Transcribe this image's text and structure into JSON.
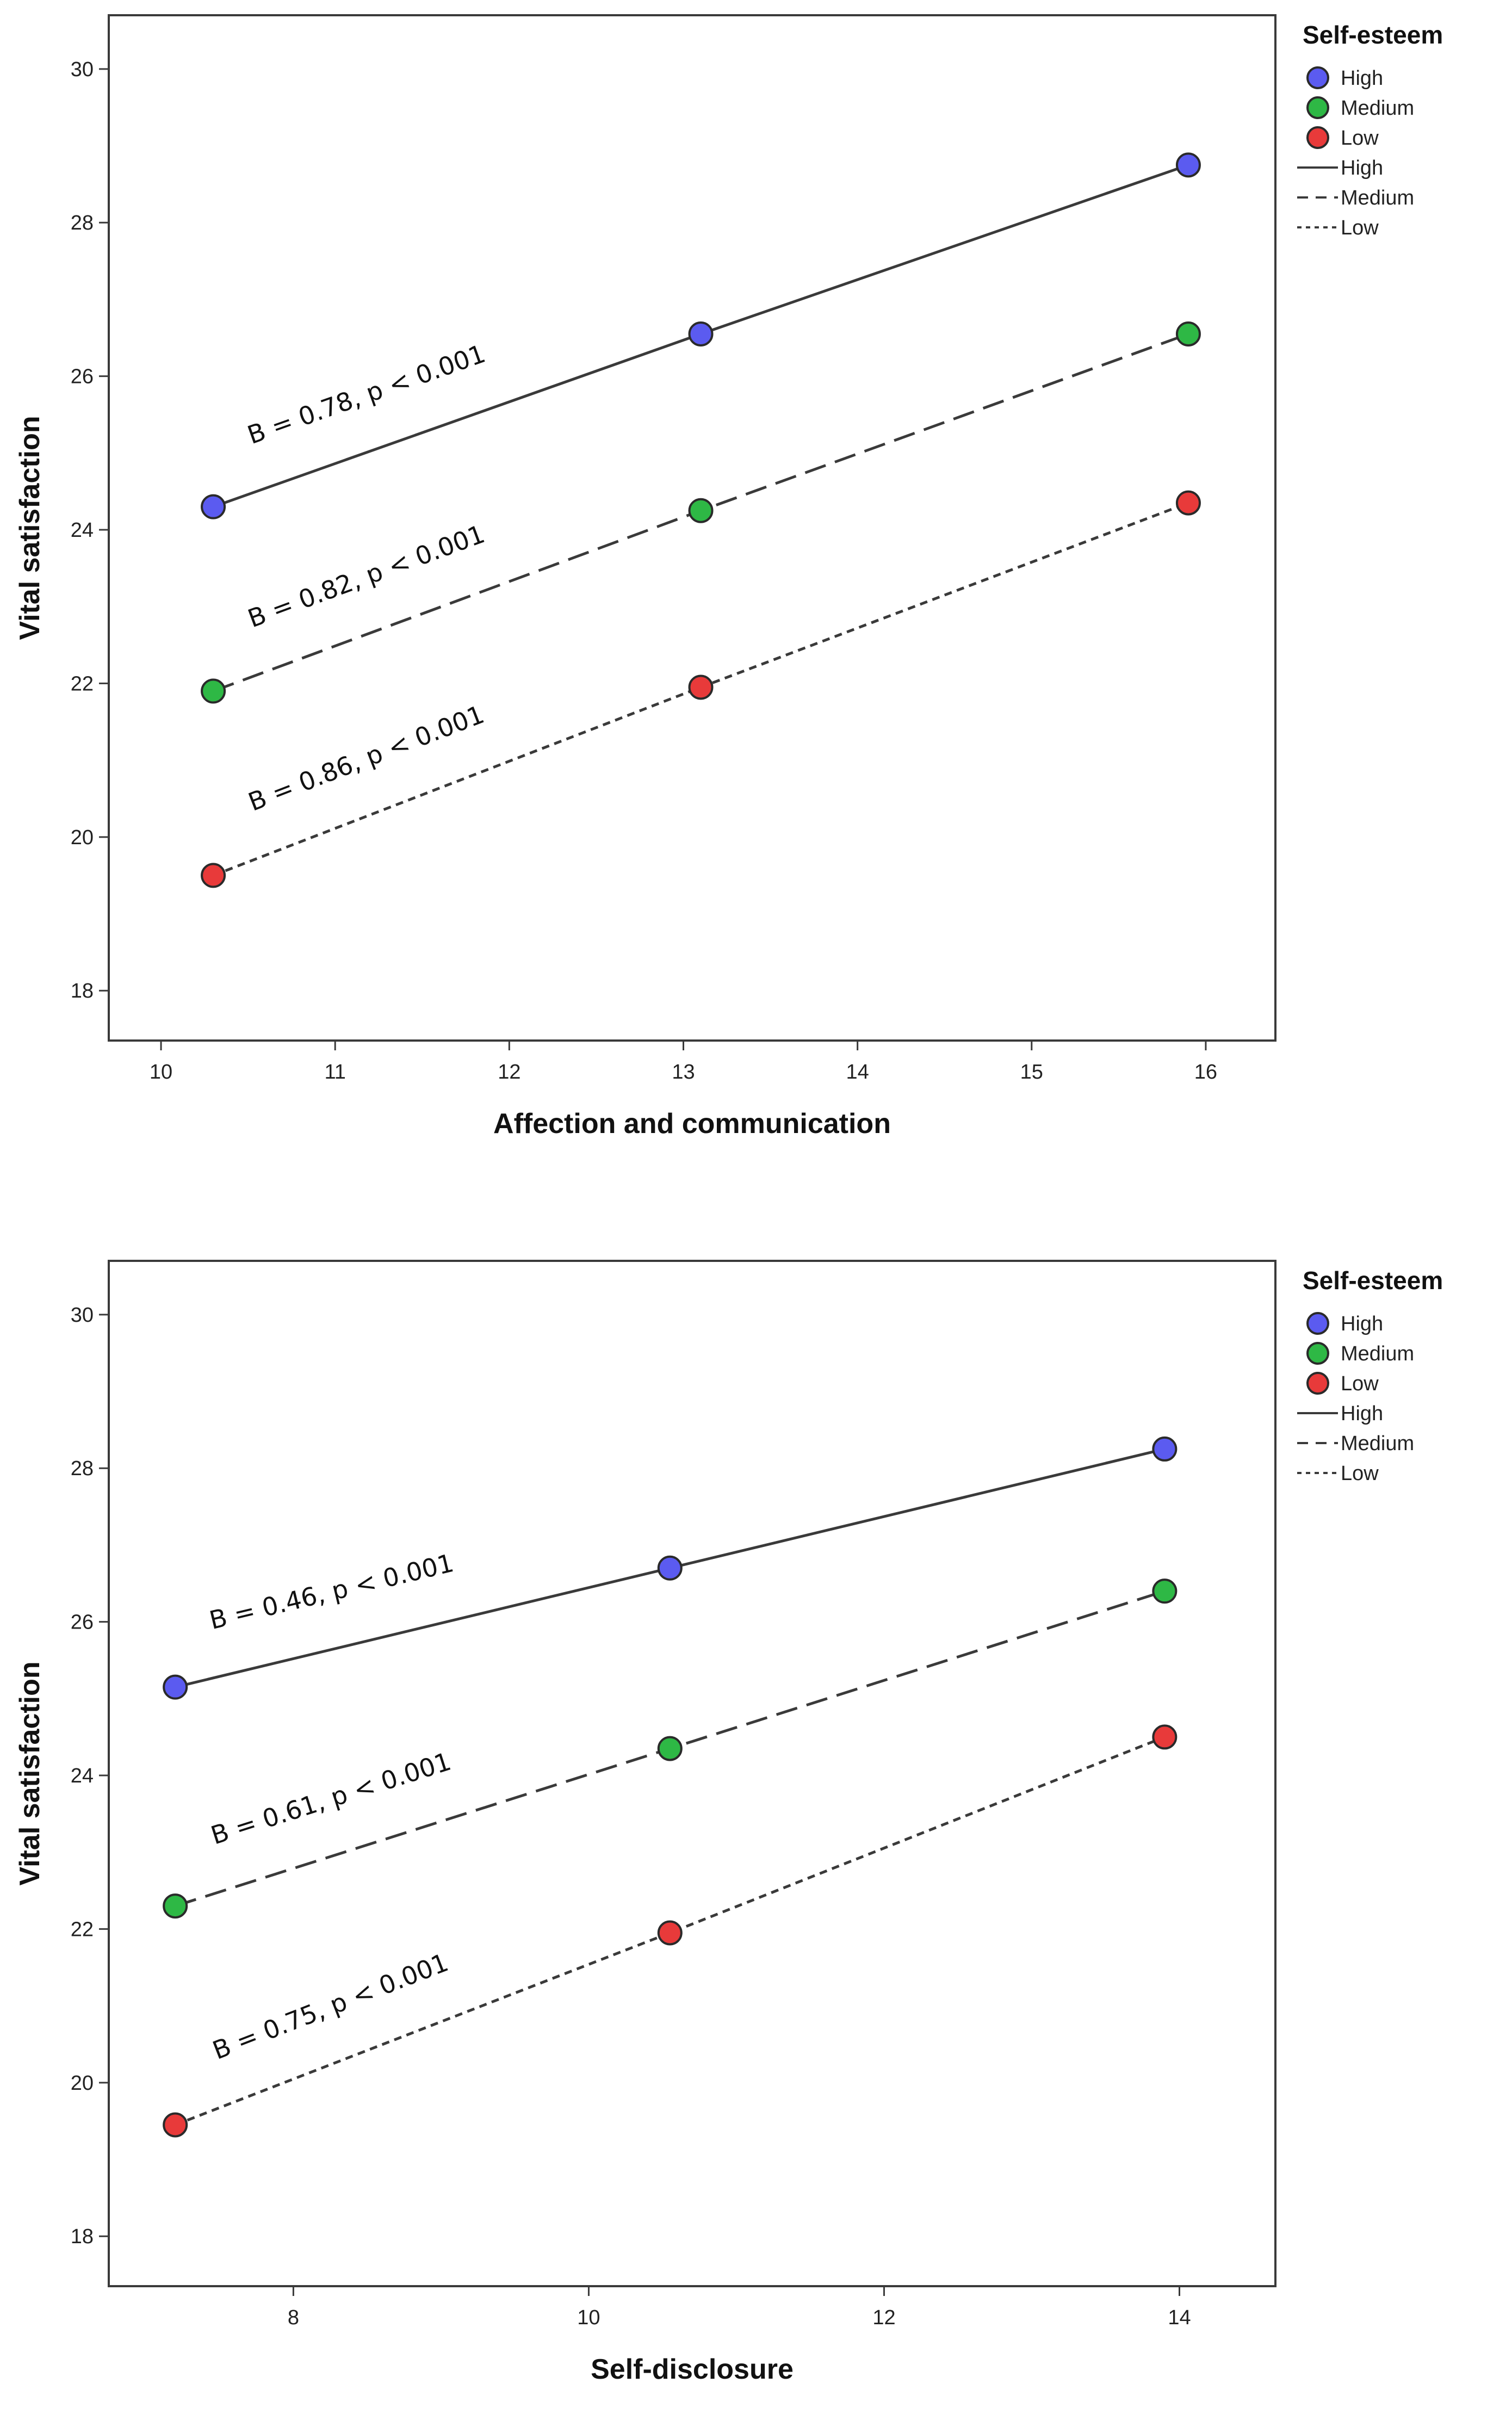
{
  "chart_data": [
    {
      "type": "line",
      "xlabel": "Affection and communication",
      "ylabel": "Vital satisfaction",
      "xlim": [
        9.7,
        16.4
      ],
      "ylim": [
        17.35,
        30.7
      ],
      "xticks": [
        10,
        11,
        12,
        13,
        14,
        15,
        16
      ],
      "yticks": [
        18,
        20,
        22,
        24,
        26,
        28,
        30
      ],
      "legend": {
        "title": "Self-esteem",
        "markers": [
          "High",
          "Medium",
          "Low"
        ],
        "lines": [
          "High",
          "Medium",
          "Low"
        ],
        "placement": "outside-right"
      },
      "x": [
        10.3,
        13.1,
        15.9
      ],
      "series": [
        {
          "name": "High",
          "color": "#5b5bf0",
          "dash": "solid",
          "values": [
            24.3,
            26.55,
            28.75
          ],
          "annotation": "B = 0.78, p < 0.001"
        },
        {
          "name": "Medium",
          "color": "#2eb845",
          "dash": "dashed",
          "values": [
            21.9,
            24.25,
            26.55
          ],
          "annotation": "B = 0.82, p < 0.001"
        },
        {
          "name": "Low",
          "color": "#e83a3a",
          "dash": "dotted",
          "values": [
            19.5,
            21.95,
            24.35
          ],
          "annotation": "B = 0.86, p < 0.001"
        }
      ]
    },
    {
      "type": "line",
      "xlabel": "Self-disclosure",
      "ylabel": "Vital satisfaction",
      "xlim": [
        6.75,
        14.65
      ],
      "ylim": [
        17.35,
        30.7
      ],
      "xticks": [
        8,
        10,
        12,
        14
      ],
      "yticks": [
        18,
        20,
        22,
        24,
        26,
        28,
        30
      ],
      "legend": {
        "title": "Self-esteem",
        "markers": [
          "High",
          "Medium",
          "Low"
        ],
        "lines": [
          "High",
          "Medium",
          "Low"
        ],
        "placement": "outside-right"
      },
      "x": [
        7.2,
        10.55,
        13.9
      ],
      "series": [
        {
          "name": "High",
          "color": "#5b5bf0",
          "dash": "solid",
          "values": [
            25.15,
            26.7,
            28.25
          ],
          "annotation": "B = 0.46, p < 0.001"
        },
        {
          "name": "Medium",
          "color": "#2eb845",
          "dash": "dashed",
          "values": [
            22.3,
            24.35,
            26.4
          ],
          "annotation": "B = 0.61, p < 0.001"
        },
        {
          "name": "Low",
          "color": "#e83a3a",
          "dash": "dotted",
          "values": [
            19.45,
            21.95,
            24.5
          ],
          "annotation": "B = 0.75, p < 0.001"
        }
      ]
    }
  ]
}
